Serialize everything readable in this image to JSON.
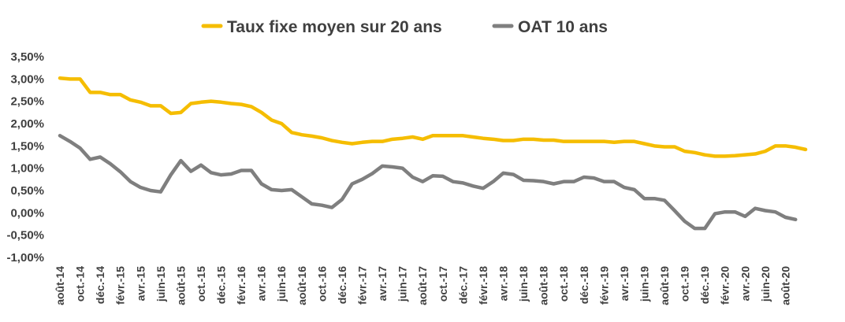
{
  "chart_data": {
    "type": "line",
    "title": "",
    "xlabel": "",
    "ylabel": "",
    "ylim": [
      -1.0,
      3.5
    ],
    "y_tick_labels": [
      "3,50%",
      "3,00%",
      "2,50%",
      "2,00%",
      "1,50%",
      "1,00%",
      "0,50%",
      "0,00%",
      "-0,50%",
      "-1,00%"
    ],
    "y_tick_values": [
      3.5,
      3.0,
      2.5,
      2.0,
      1.5,
      1.0,
      0.5,
      0.0,
      -0.5,
      -1.0
    ],
    "x_tick_labels": [
      "août-14",
      "oct.-14",
      "déc.-14",
      "févr.-15",
      "avr.-15",
      "juin-15",
      "août-15",
      "oct.-15",
      "déc.-15",
      "févr.-16",
      "avr.-16",
      "juin-16",
      "août-16",
      "oct.-16",
      "déc.-16",
      "févr.-17",
      "avr.-17",
      "juin-17",
      "août-17",
      "oct.-17",
      "déc.-17",
      "févr.-18",
      "avr.-18",
      "juin-18",
      "août-18",
      "oct.-18",
      "déc.-18",
      "févr.-19",
      "avr.-19",
      "juin-19",
      "août-19",
      "oct.-19",
      "déc.-19",
      "févr.-20",
      "avr.-20",
      "juin-20",
      "août-20"
    ],
    "x_tick_every": 2,
    "grid": false,
    "legend_position": "top-center",
    "series": [
      {
        "name": "Taux fixe moyen sur 20 ans",
        "color": "#f5bd00",
        "values": [
          3.02,
          3.0,
          3.0,
          2.7,
          2.7,
          2.65,
          2.65,
          2.53,
          2.48,
          2.4,
          2.4,
          2.23,
          2.25,
          2.45,
          2.48,
          2.5,
          2.48,
          2.45,
          2.43,
          2.38,
          2.25,
          2.08,
          2.0,
          1.8,
          1.75,
          1.72,
          1.68,
          1.62,
          1.58,
          1.55,
          1.58,
          1.6,
          1.6,
          1.65,
          1.67,
          1.7,
          1.65,
          1.73,
          1.73,
          1.73,
          1.73,
          1.7,
          1.67,
          1.65,
          1.62,
          1.62,
          1.65,
          1.65,
          1.63,
          1.63,
          1.6,
          1.6,
          1.6,
          1.6,
          1.6,
          1.58,
          1.6,
          1.6,
          1.55,
          1.5,
          1.48,
          1.48,
          1.38,
          1.35,
          1.3,
          1.27,
          1.27,
          1.28,
          1.3,
          1.32,
          1.38,
          1.5,
          1.5,
          1.47,
          1.42
        ]
      },
      {
        "name": "OAT 10 ans",
        "color": "#7f7f7f",
        "values": [
          1.73,
          1.6,
          1.45,
          1.2,
          1.25,
          1.1,
          0.92,
          0.7,
          0.57,
          0.5,
          0.47,
          0.85,
          1.17,
          0.93,
          1.07,
          0.9,
          0.85,
          0.87,
          0.95,
          0.95,
          0.65,
          0.52,
          0.5,
          0.52,
          0.36,
          0.2,
          0.17,
          0.12,
          0.3,
          0.65,
          0.75,
          0.88,
          1.05,
          1.03,
          1.0,
          0.8,
          0.7,
          0.83,
          0.82,
          0.7,
          0.67,
          0.6,
          0.55,
          0.7,
          0.89,
          0.86,
          0.73,
          0.72,
          0.7,
          0.65,
          0.7,
          0.7,
          0.8,
          0.78,
          0.7,
          0.7,
          0.57,
          0.52,
          0.32,
          0.32,
          0.28,
          0.05,
          -0.19,
          -0.35,
          -0.35,
          -0.02,
          0.02,
          0.02,
          -0.08,
          0.1,
          0.05,
          0.02,
          -0.1,
          -0.15
        ]
      }
    ]
  }
}
